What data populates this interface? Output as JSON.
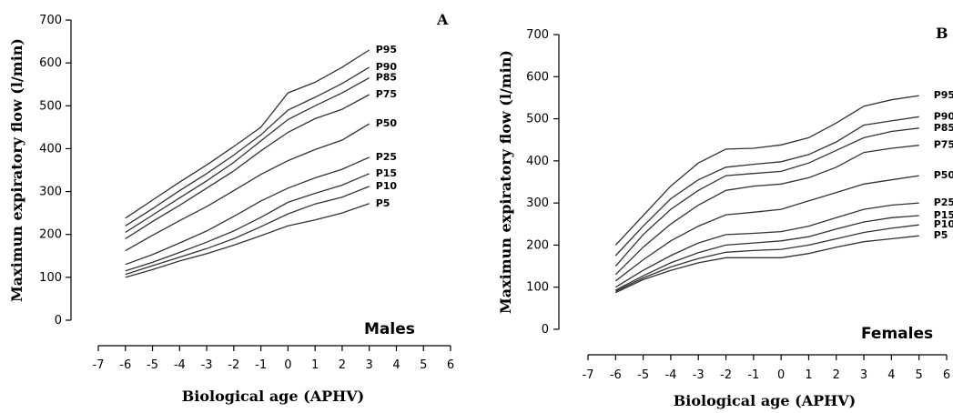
{
  "chart_data": [
    {
      "type": "line",
      "panel_label": "A",
      "group_label": "Males",
      "xlabel": "Biological age (APHV)",
      "ylabel": "Maximun expiratory flow (l/min)",
      "xlim": [
        -7,
        6
      ],
      "ylim": [
        0,
        700
      ],
      "x_ticks": [
        -7,
        -6,
        -5,
        -4,
        -3,
        -2,
        -1,
        0,
        1,
        2,
        3,
        4,
        5,
        6
      ],
      "y_ticks": [
        0,
        100,
        200,
        300,
        400,
        500,
        600,
        700
      ],
      "x": [
        -6,
        -5,
        -4,
        -3,
        -2,
        -1,
        0,
        1,
        2,
        3
      ],
      "series": [
        {
          "name": "P5",
          "values": [
            100,
            118,
            138,
            155,
            175,
            197,
            220,
            234,
            250,
            272
          ]
        },
        {
          "name": "P10",
          "values": [
            107,
            127,
            147,
            167,
            190,
            218,
            248,
            271,
            287,
            312
          ]
        },
        {
          "name": "P15",
          "values": [
            115,
            135,
            158,
            182,
            208,
            240,
            275,
            296,
            315,
            342
          ]
        },
        {
          "name": "P25",
          "values": [
            130,
            153,
            180,
            208,
            242,
            278,
            308,
            332,
            352,
            380
          ]
        },
        {
          "name": "P50",
          "values": [
            162,
            198,
            232,
            265,
            302,
            340,
            372,
            398,
            420,
            458
          ]
        },
        {
          "name": "P75",
          "values": [
            190,
            230,
            268,
            308,
            348,
            395,
            438,
            470,
            492,
            526
          ]
        },
        {
          "name": "P85",
          "values": [
            205,
            245,
            285,
            325,
            368,
            418,
            468,
            500,
            530,
            565
          ]
        },
        {
          "name": "P90",
          "values": [
            220,
            260,
            302,
            342,
            385,
            432,
            490,
            520,
            552,
            590
          ]
        },
        {
          "name": "P95",
          "values": [
            238,
            280,
            322,
            362,
            405,
            450,
            530,
            555,
            590,
            630
          ]
        }
      ]
    },
    {
      "type": "line",
      "panel_label": "B",
      "group_label": "Females",
      "xlabel": "Biological age (APHV)",
      "ylabel": "Maximun expiratory flow (l/min)",
      "xlim": [
        -7,
        6
      ],
      "ylim": [
        0,
        700
      ],
      "x_ticks": [
        -7,
        -6,
        -5,
        -4,
        -3,
        -2,
        -1,
        0,
        1,
        2,
        3,
        4,
        5,
        6
      ],
      "y_ticks": [
        0,
        100,
        200,
        300,
        400,
        500,
        600,
        700
      ],
      "x": [
        -6,
        -5,
        -4,
        -3,
        -2,
        -1,
        0,
        1,
        2,
        3,
        4,
        5
      ],
      "series": [
        {
          "name": "P5",
          "values": [
            87,
            118,
            140,
            158,
            170,
            170,
            170,
            180,
            195,
            208,
            215,
            222
          ]
        },
        {
          "name": "P10",
          "values": [
            90,
            122,
            148,
            168,
            183,
            187,
            190,
            200,
            215,
            230,
            240,
            248
          ]
        },
        {
          "name": "P15",
          "values": [
            93,
            127,
            158,
            182,
            200,
            205,
            210,
            220,
            238,
            255,
            265,
            270
          ]
        },
        {
          "name": "P25",
          "values": [
            100,
            140,
            175,
            205,
            225,
            228,
            232,
            245,
            265,
            285,
            295,
            300
          ]
        },
        {
          "name": "P50",
          "values": [
            115,
            165,
            210,
            245,
            272,
            278,
            285,
            305,
            325,
            345,
            355,
            365
          ]
        },
        {
          "name": "P75",
          "values": [
            130,
            195,
            250,
            295,
            330,
            340,
            345,
            360,
            385,
            420,
            430,
            437
          ]
        },
        {
          "name": "P85",
          "values": [
            150,
            225,
            285,
            330,
            365,
            370,
            375,
            395,
            425,
            455,
            470,
            478
          ]
        },
        {
          "name": "P90",
          "values": [
            175,
            245,
            310,
            355,
            385,
            392,
            398,
            415,
            445,
            485,
            495,
            505
          ]
        },
        {
          "name": "P95",
          "values": [
            200,
            270,
            340,
            395,
            428,
            430,
            438,
            455,
            490,
            530,
            545,
            555
          ]
        }
      ]
    }
  ]
}
